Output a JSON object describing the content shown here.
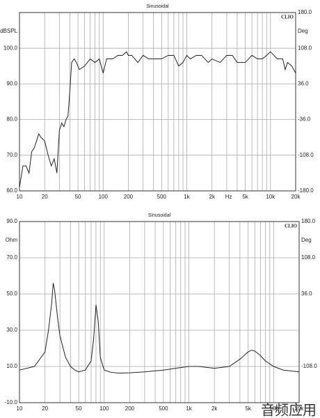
{
  "chart_data": [
    {
      "type": "line",
      "title": "Sinusoidal",
      "brand": "CLIO",
      "ylabel": "dBSPL",
      "y2label": "Deg",
      "xlabel": "Hz",
      "log_x": true,
      "grid": true,
      "xlim": [
        10,
        20000
      ],
      "ylim": [
        60,
        110
      ],
      "y2lim": [
        -180,
        180
      ],
      "xticks": [
        10,
        20,
        50,
        100,
        200,
        500,
        {
          "value": 1000,
          "label": "1k"
        },
        {
          "value": 2000,
          "label": "2k"
        },
        {
          "value": 5000,
          "label": "5k"
        },
        {
          "value": 10000,
          "label": "10k"
        },
        {
          "value": 20000,
          "label": "20k"
        }
      ],
      "x_minor_grid": [
        30,
        40,
        60,
        70,
        80,
        90,
        300,
        400,
        600,
        700,
        800,
        900,
        3000,
        4000,
        6000,
        7000,
        8000,
        9000
      ],
      "yticks": [
        {
          "value": 60,
          "label": "60.0"
        },
        {
          "value": 70,
          "label": "70.0"
        },
        {
          "value": 80,
          "label": "80.0"
        },
        {
          "value": 90,
          "label": "90.0"
        },
        {
          "value": 100,
          "label": "100.0"
        }
      ],
      "y2ticks": [
        {
          "value": -180,
          "label": "-180.0"
        },
        {
          "value": -108,
          "label": "-108.0"
        },
        {
          "value": -36,
          "label": "-36.0"
        },
        {
          "value": 36,
          "label": "36.0"
        },
        {
          "value": 108,
          "label": "108.0"
        },
        {
          "value": 180,
          "label": "180.0"
        }
      ],
      "x": [
        10,
        11,
        12,
        13,
        14,
        15,
        16,
        17,
        18,
        20,
        22,
        24,
        26,
        27,
        28,
        30,
        32,
        34,
        36,
        38,
        40,
        42,
        45,
        48,
        52,
        60,
        70,
        80,
        90,
        100,
        110,
        130,
        150,
        170,
        190,
        200,
        220,
        260,
        300,
        350,
        400,
        500,
        600,
        700,
        800,
        900,
        1000,
        1100,
        1300,
        1500,
        1800,
        2000,
        2500,
        3000,
        3500,
        4000,
        5000,
        6000,
        7000,
        8000,
        9000,
        10000,
        11000,
        12000,
        14000,
        15000,
        16000,
        18000,
        20000
      ],
      "series": [
        {
          "color": "#222222",
          "values": [
            61,
            67,
            67,
            65,
            71,
            72,
            74,
            76,
            75,
            74,
            70,
            67,
            69,
            67,
            65,
            77,
            79,
            78,
            80,
            81,
            88,
            96,
            97,
            96,
            94,
            95,
            97,
            96,
            97,
            93,
            97,
            97,
            98,
            98,
            99,
            98,
            98,
            96,
            98,
            97,
            97,
            97,
            98,
            98,
            95,
            96,
            98,
            97,
            98,
            98,
            96,
            97,
            96,
            98,
            98,
            96,
            96,
            98,
            97,
            97,
            98,
            99,
            98,
            97,
            97,
            94,
            96,
            95,
            93
          ]
        }
      ]
    },
    {
      "type": "line",
      "title": "Sinusoidal",
      "brand": "CLIO",
      "ylabel": "Ohm",
      "y2label": "Deg",
      "log_x": true,
      "grid": true,
      "xlim": [
        10,
        20000
      ],
      "ylim": [
        -10,
        90
      ],
      "y2lim": [
        -180,
        180
      ],
      "xticks": [
        10,
        20,
        50,
        100,
        200,
        500,
        {
          "value": 1000,
          "label": "1k"
        },
        {
          "value": 2000,
          "label": "2k"
        },
        {
          "value": 5000,
          "label": "5k"
        },
        {
          "value": 10000,
          "label": "10k"
        },
        {
          "value": 20000,
          "label": "20k"
        }
      ],
      "x_minor_grid": [
        30,
        40,
        60,
        70,
        80,
        90,
        300,
        400,
        600,
        700,
        800,
        900,
        3000,
        4000,
        6000,
        7000,
        8000,
        9000
      ],
      "yticks": [
        {
          "value": -10,
          "label": "-10.0"
        },
        {
          "value": 10,
          "label": "10.0"
        },
        {
          "value": 30,
          "label": "30.0"
        },
        {
          "value": 50,
          "label": "50.0"
        },
        {
          "value": 70,
          "label": "70.0"
        },
        {
          "value": 90,
          "label": "90.0"
        }
      ],
      "y2ticks": [
        {
          "value": -108,
          "label": "-108.0"
        },
        {
          "value": 36,
          "label": "36.0"
        },
        {
          "value": 108,
          "label": "108.0"
        },
        {
          "value": 180,
          "label": "180.0"
        }
      ],
      "x": [
        10,
        15,
        20,
        22,
        24,
        25,
        26,
        28,
        30,
        35,
        40,
        45,
        50,
        60,
        70,
        75,
        80,
        85,
        90,
        100,
        120,
        150,
        200,
        300,
        500,
        700,
        1000,
        1300,
        1600,
        2000,
        3000,
        4000,
        5000,
        5500,
        6000,
        7000,
        8000,
        10000,
        13000,
        20000
      ],
      "series": [
        {
          "color": "#222222",
          "values": [
            8,
            10,
            18,
            30,
            45,
            56,
            52,
            38,
            27,
            15,
            10,
            8,
            7,
            8,
            13,
            25,
            44,
            35,
            15,
            8,
            6.8,
            6.3,
            6.5,
            7,
            8,
            9,
            10,
            10,
            9.5,
            9,
            10,
            14,
            18,
            19,
            18.5,
            16,
            13,
            10,
            8,
            7
          ]
        }
      ]
    }
  ],
  "watermark": "音频应用"
}
